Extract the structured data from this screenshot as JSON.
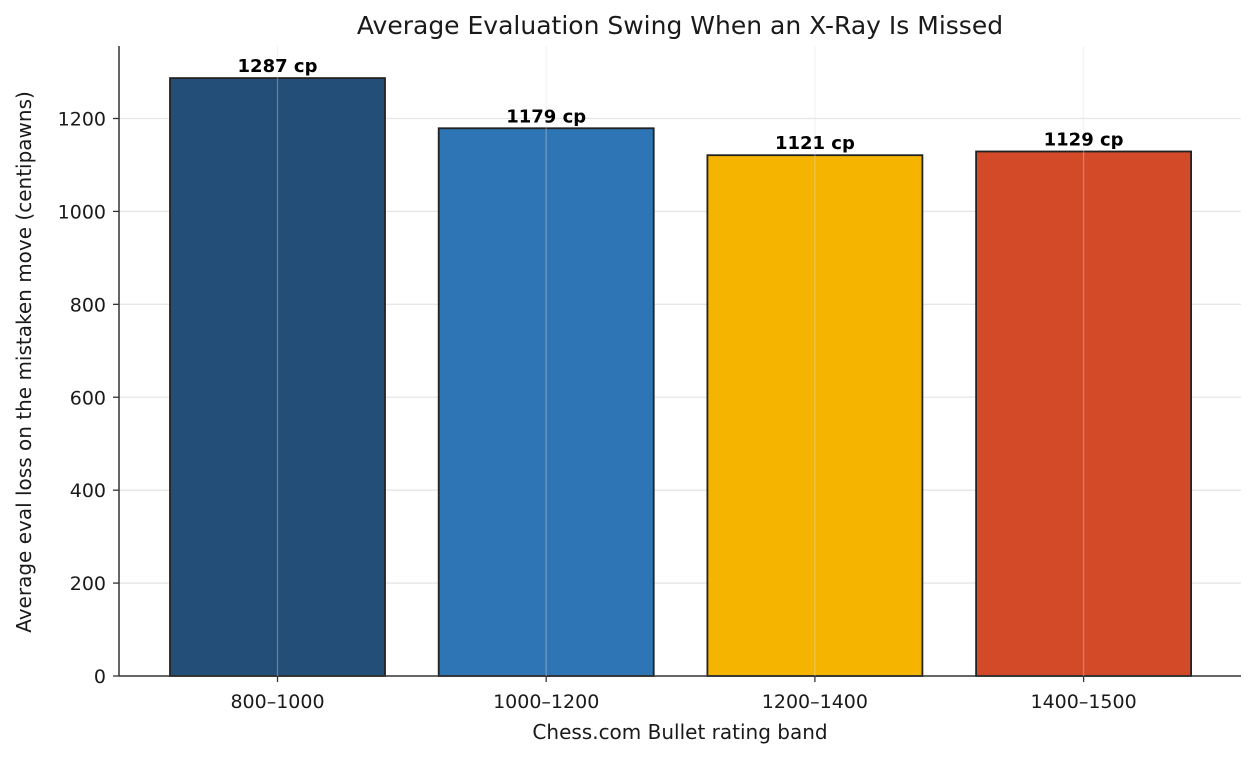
{
  "chart_data": {
    "type": "bar",
    "title": "Average Evaluation Swing When an X-Ray Is Missed",
    "xlabel": "Chess.com Bullet rating band",
    "ylabel": "Average eval loss on the mistaken move (centipawns)",
    "categories": [
      "800–1000",
      "1000–1200",
      "1200–1400",
      "1400–1500"
    ],
    "values": [
      1287,
      1179,
      1121,
      1129
    ],
    "value_labels": [
      "1287 cp",
      "1179 cp",
      "1121 cp",
      "1129 cp"
    ],
    "colors": [
      "#224e77",
      "#2e75b6",
      "#f4b400",
      "#d34a29"
    ],
    "ylim": [
      0,
      1350
    ],
    "yticks": [
      0,
      200,
      400,
      600,
      800,
      1000,
      1200
    ],
    "ytick_labels": [
      "0",
      "200",
      "400",
      "600",
      "800",
      "1000",
      "1200"
    ],
    "grid": true,
    "legend": "none"
  }
}
